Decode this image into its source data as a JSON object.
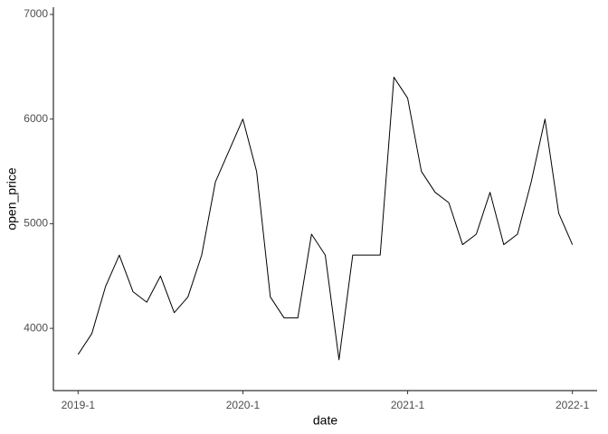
{
  "chart_data": {
    "type": "line",
    "x_label": "date",
    "y_label": "open_price",
    "x": [
      "2019-1",
      "2019-2",
      "2019-3",
      "2019-4",
      "2019-5",
      "2019-6",
      "2019-7",
      "2019-8",
      "2019-9",
      "2019-10",
      "2019-11",
      "2019-12",
      "2020-1",
      "2020-2",
      "2020-3",
      "2020-4",
      "2020-5",
      "2020-6",
      "2020-7",
      "2020-8",
      "2020-9",
      "2020-10",
      "2020-11",
      "2020-12",
      "2021-1",
      "2021-2",
      "2021-3",
      "2021-4",
      "2021-5",
      "2021-6",
      "2021-7",
      "2021-8",
      "2021-9",
      "2021-10",
      "2021-11",
      "2021-12",
      "2022-1"
    ],
    "series": [
      {
        "name": "open_price",
        "color": "#000000",
        "values": [
          3750,
          3950,
          4400,
          4700,
          4350,
          4250,
          4500,
          4150,
          4300,
          4700,
          5400,
          5700,
          6000,
          5500,
          4300,
          4100,
          4100,
          4900,
          4700,
          3700,
          4700,
          4700,
          4700,
          6400,
          6200,
          5500,
          5300,
          5200,
          4800,
          4900,
          5300,
          4800,
          4900,
          5400,
          6000,
          5100,
          4800
        ]
      }
    ],
    "xticks": [
      "2019-1",
      "2020-1",
      "2021-1",
      "2022-1"
    ],
    "ylim": [
      3405,
      7069
    ],
    "yticks": [
      4000,
      5000,
      6000,
      7000
    ],
    "grid": false
  }
}
